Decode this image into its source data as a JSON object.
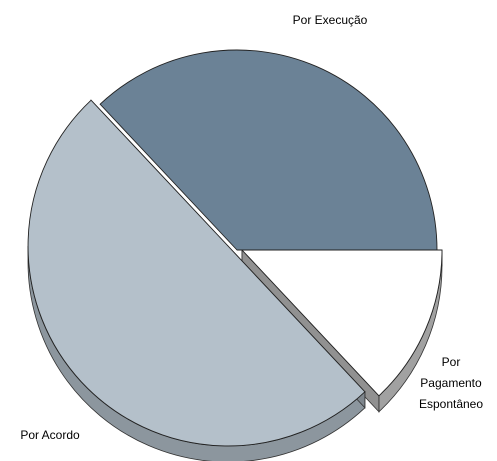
{
  "chart_data": {
    "type": "pie",
    "style": "3d-exploded",
    "categories": [
      "Por Execução",
      "Por Pagamento Espontâneo",
      "Por Acordo"
    ],
    "values": [
      37.0,
      13.0,
      50.0
    ],
    "unit": "%",
    "colors": [
      "#6B8296",
      "#FFFFFF",
      "#B4C0CA"
    ],
    "exploded": [
      "Por Pagamento Espontâneo",
      "Por Acordo"
    ],
    "labels": {
      "execucao": "Por Execução",
      "pagamento_1": "Por",
      "pagamento_2": "Pagamento",
      "pagamento_3": "Espontâneo",
      "acordo": "Por Acordo"
    },
    "legend": "none",
    "grid": false
  }
}
